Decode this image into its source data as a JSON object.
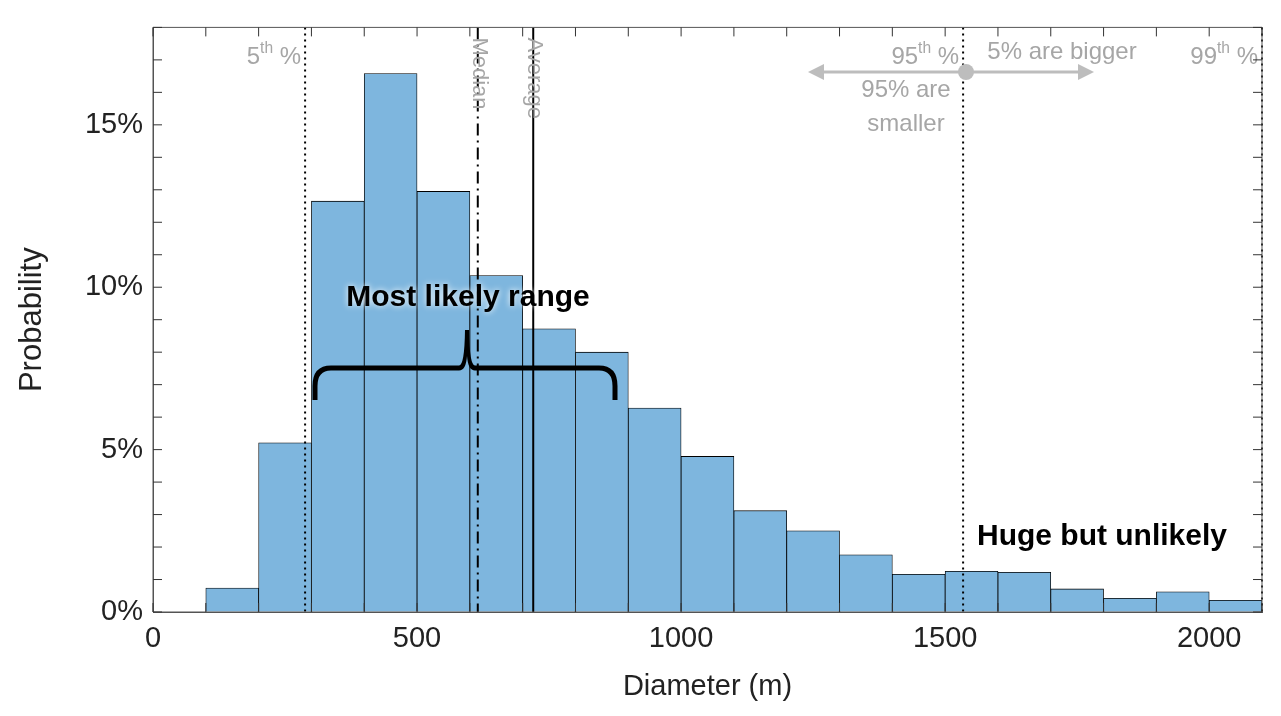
{
  "chart_data": {
    "type": "histogram",
    "xlabel": "Diameter (m)",
    "ylabel": "Probability",
    "bins": [
      100,
      200,
      300,
      400,
      500,
      600,
      700,
      800,
      900,
      1000,
      1100,
      1200,
      1300,
      1400,
      1500,
      1600,
      1700,
      1800,
      1900,
      2000,
      2100
    ],
    "values": [
      0.74,
      5.21,
      12.65,
      16.58,
      12.95,
      10.36,
      8.72,
      8.0,
      6.28,
      4.79,
      3.12,
      2.5,
      1.76,
      1.16,
      1.25,
      1.22,
      0.71,
      0.42,
      0.62,
      0.36
    ],
    "color": "#7eb6de",
    "xlim": [
      0,
      2100
    ],
    "xticks": [
      0,
      {
        "value": 100,
        "label": null
      },
      {
        "value": 200,
        "label": null
      },
      {
        "value": 300,
        "label": null
      },
      {
        "value": 400,
        "label": null
      },
      500,
      {
        "value": 600,
        "label": null
      },
      {
        "value": 700,
        "label": null
      },
      {
        "value": 800,
        "label": null
      },
      {
        "value": 900,
        "label": null
      },
      1000,
      {
        "value": 1100,
        "label": null
      },
      {
        "value": 1200,
        "label": null
      },
      {
        "value": 1300,
        "label": null
      },
      {
        "value": 1400,
        "label": null
      },
      1500,
      {
        "value": 1600,
        "label": null
      },
      {
        "value": 1700,
        "label": null
      },
      {
        "value": 1800,
        "label": null
      },
      {
        "value": 1900,
        "label": null
      },
      2000,
      {
        "value": 2100,
        "label": null
      }
    ],
    "ylim": [
      0,
      18
    ],
    "yticks": [
      {
        "value": 0,
        "label": "0%"
      },
      {
        "value": 1,
        "label": null
      },
      {
        "value": 2,
        "label": null
      },
      {
        "value": 3,
        "label": null
      },
      {
        "value": 4,
        "label": null
      },
      {
        "value": 5,
        "label": "5%"
      },
      {
        "value": 6,
        "label": null
      },
      {
        "value": 7,
        "label": null
      },
      {
        "value": 8,
        "label": null
      },
      {
        "value": 9,
        "label": null
      },
      {
        "value": 10,
        "label": "10%"
      },
      {
        "value": 11,
        "label": null
      },
      {
        "value": 12,
        "label": null
      },
      {
        "value": 13,
        "label": null
      },
      {
        "value": 14,
        "label": null
      },
      {
        "value": 15,
        "label": "15%"
      },
      {
        "value": 16,
        "label": null
      },
      {
        "value": 17,
        "label": null
      },
      {
        "value": 18,
        "label": null
      }
    ],
    "grid": false,
    "legend": false,
    "ref_lines": [
      {
        "axis": "x",
        "value": 288,
        "label": "5$^{th}$ %",
        "color": "#000000",
        "line_style": "dotted"
      },
      {
        "axis": "x",
        "value": 615,
        "label": "Median",
        "color": "#000000",
        "line_style": "dashed"
      },
      {
        "axis": "x",
        "value": 720,
        "label": "Average",
        "color": "#000000",
        "line_style": "solid"
      },
      {
        "axis": "x",
        "value": 1534,
        "label": "95$^{th}$ %",
        "color": "#000000",
        "line_style": "dotted"
      },
      {
        "axis": "x",
        "value": 2100,
        "label": "99$^{th}$ %",
        "color": "#000000",
        "line_style": "dotted"
      }
    ],
    "annotations": [
      "Most likely range",
      "Huge but unlikely",
      "95% are smaller",
      "5% are bigger"
    ]
  }
}
